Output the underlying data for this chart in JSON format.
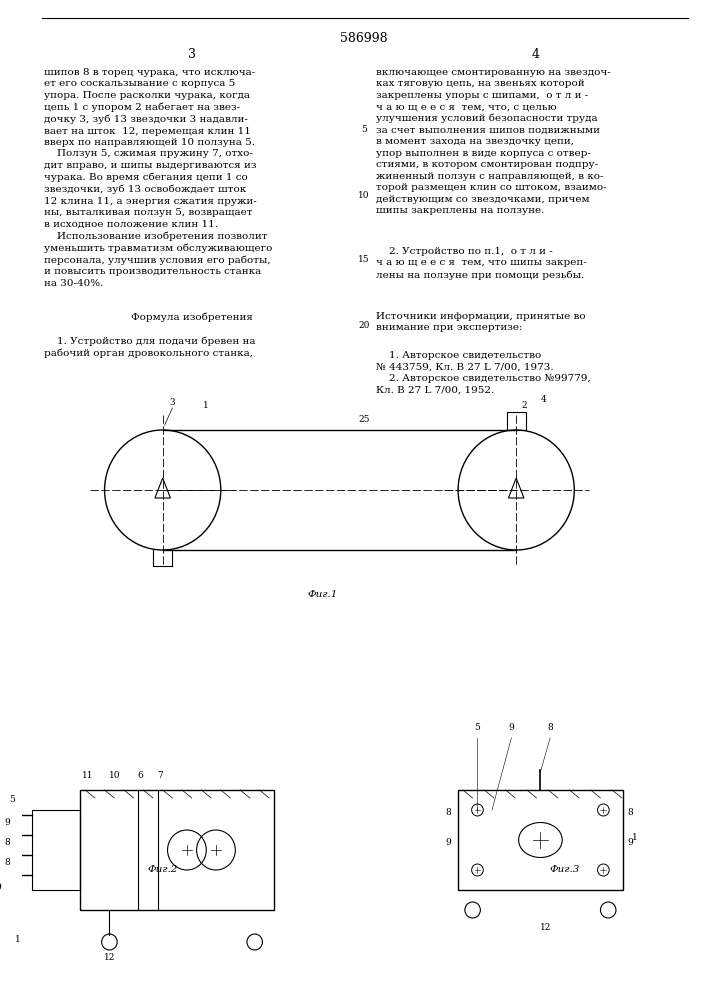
{
  "patent_number": "586998",
  "page_left": "3",
  "page_right": "4",
  "text_left": "шипов 8 в торец чурака, что исключа-\nет его соскальзывание с корпуса 5\nупора. После расколки чурака, когда\nцепь 1 с упором 2 набегает на звез-\nдочку 3, зуб 13 звездочки 3 надавли-\nвает на шток  12, перемещая клин 11\nвверх по направляющей 10 ползуна 5.\n    Ползун 5, сжимая пружину 7, отхо-\nдит вправо, и шипы выдергиваются из\nчурака. Во время сбегания цепи 1 со\nзвездочки, зуб 13 освобождает шток\n12 клина 11, а энергия сжатия пружи-\nны, выталкивая ползун 5, возвращает\nв исходное положение клин 11.\n    Использование изобретения позволит\nуменьшить травматизм обслуживающего\nперсонала, улучшив условия его работы,\nи повысить производительность станка\nна 30-40%.",
  "formula_title": "Формула изобретения",
  "formula_text": "    1. Устройство для подачи бревен на\nрабочий орган дровокольного станка,",
  "text_right_col": "включающее смонтированную на звездоч-\nках тяговую цепь, на звеньях которой\nзакреплены упоры с шипами,  о т л и -\nч а ю щ е е с я  тем, что, с целью\nулучшения условий безопасности труда\nза счет выполнения шипов подвижными\nв момент захода на звездочку цепи,\nупор выполнен в виде корпуса с отвер-\nстиями, в котором смонтирован подпру-\nжиненный ползун с направляющей, в ко-\nторой размещен клин со штоком, взаимо-\nдействующим со звездочками, причем\nшипы закреплены на ползуне.",
  "claim2": "    2. Устройство по п.1,  о т л и -\nч а ю щ е е с я  тем, что шипы закреп-\nлены на ползуне при помощи резьбы.",
  "sources_title": "Источники информации, принятые во\nвнимание при экспертизе:",
  "sources_text": "    1. Авторское свидетельство\n№ 443759, Кл. В 27 L 7/00, 1973.\n    2. Авторское свидетельство №99779,\nКл. В 27 L 7/00, 1952.",
  "line_numbers": [
    "5",
    "10",
    "15",
    "20",
    "25"
  ],
  "fig1_label": "Фиг.1",
  "fig2_label": "Фиг.2",
  "fig3_label": "Фиг.3",
  "bg_color": "#ffffff",
  "text_color": "#000000",
  "line_color": "#000000",
  "font_size_body": 7.5,
  "font_size_small": 6.5
}
